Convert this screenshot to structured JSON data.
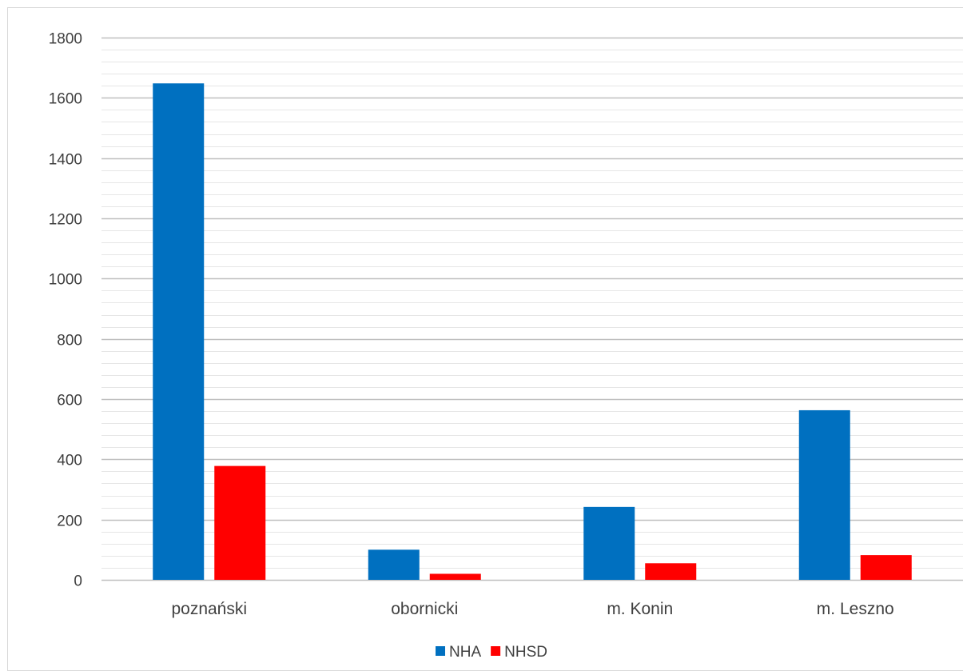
{
  "chart_data": {
    "type": "bar",
    "categories": [
      "poznański",
      "obornicki",
      "m. Konin",
      "m. Leszno"
    ],
    "series": [
      {
        "name": "NHA",
        "color": "#0070C0",
        "values": [
          1648,
          100,
          242,
          563
        ]
      },
      {
        "name": "NHSD",
        "color": "#FF0000",
        "values": [
          378,
          20,
          55,
          82
        ]
      }
    ],
    "ylim": [
      0,
      1800
    ],
    "major_tick_step": 200,
    "minor_tick_step": 40,
    "yticks": [
      "0",
      "200",
      "400",
      "600",
      "800",
      "1000",
      "1200",
      "1400",
      "1600",
      "1800"
    ],
    "grid": true,
    "legend_position": "bottom",
    "title": "",
    "xlabel": "",
    "ylabel": ""
  }
}
